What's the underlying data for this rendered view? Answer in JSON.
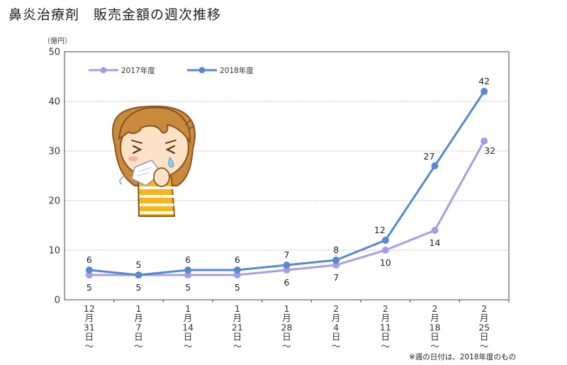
{
  "page": {
    "title": "鼻炎治療剤　販売金額の週次推移",
    "footnote": "※週の日付は、2018年度のもの"
  },
  "chart_data": {
    "type": "line",
    "title": "鼻炎治療剤　販売金額の週次推移",
    "unit_label": "（億円）",
    "categories": [
      [
        "12",
        "月",
        "31",
        "日",
        "～"
      ],
      [
        "1",
        "月",
        "7",
        "日",
        "～"
      ],
      [
        "1",
        "月",
        "14",
        "日",
        "～"
      ],
      [
        "1",
        "月",
        "21",
        "日",
        "～"
      ],
      [
        "1",
        "月",
        "28",
        "日",
        "～"
      ],
      [
        "2",
        "月",
        "4",
        "日",
        "～"
      ],
      [
        "2",
        "月",
        "11",
        "日",
        "～"
      ],
      [
        "2",
        "月",
        "18",
        "日",
        "～"
      ],
      [
        "2",
        "月",
        "25",
        "日",
        "～"
      ]
    ],
    "series": [
      {
        "name": "2017年度",
        "color": "#a79de6",
        "values": [
          5,
          5,
          5,
          5,
          6,
          7,
          10,
          14,
          32
        ],
        "label_position": "below"
      },
      {
        "name": "2018年度",
        "color": "#5589d0",
        "values": [
          6,
          5,
          6,
          6,
          7,
          8,
          12,
          27,
          42
        ],
        "label_position": "above"
      }
    ],
    "ylim": [
      0,
      50
    ],
    "yticks": [
      0,
      10,
      20,
      30,
      40,
      50
    ],
    "grid": true,
    "legend": "top-left",
    "illustration": "sneezing-girl-with-tissue"
  }
}
